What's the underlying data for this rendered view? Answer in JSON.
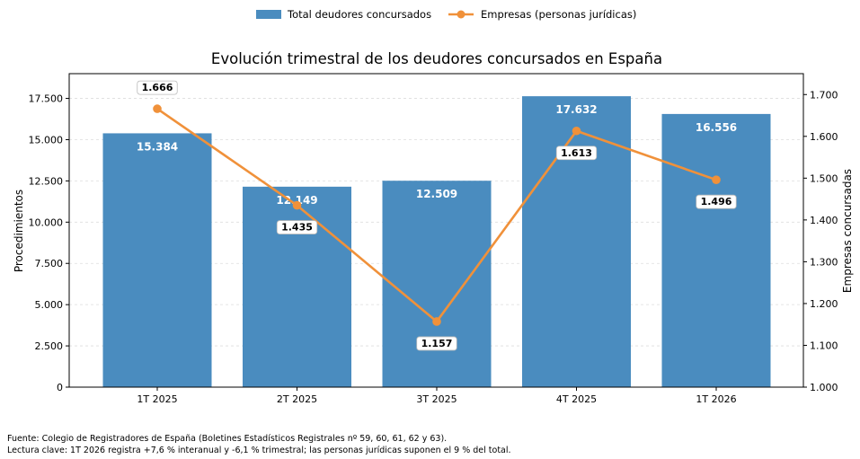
{
  "chart_data": {
    "type": "bar+line",
    "title": "Evolución trimestral de los deudores concursados en España",
    "categories": [
      "1T 2025",
      "2T 2025",
      "3T 2025",
      "4T 2025",
      "1T 2026"
    ],
    "series": [
      {
        "name": "Total deudores concursados",
        "type": "bar",
        "axis": "left",
        "values": [
          15384,
          12149,
          12509,
          17632,
          16556
        ],
        "labels": [
          "15.384",
          "12.149",
          "12.509",
          "17.632",
          "16.556"
        ],
        "color": "#4a8cbf"
      },
      {
        "name": "Empresas (personas jurídicas)",
        "type": "line",
        "axis": "right",
        "values": [
          1666,
          1435,
          1157,
          1613,
          1496
        ],
        "labels": [
          "1.666",
          "1.435",
          "1.157",
          "1.613",
          "1.496"
        ],
        "color": "#f0913a"
      }
    ],
    "ylabel_left": "Procedimientos",
    "ylabel_right": "Empresas concursadas",
    "ylim_left": [
      0,
      19000
    ],
    "ylim_right": [
      1000,
      1750
    ],
    "yticks_left": [
      {
        "value": 0,
        "label": "0"
      },
      {
        "value": 2500,
        "label": "2.500"
      },
      {
        "value": 5000,
        "label": "5.000"
      },
      {
        "value": 7500,
        "label": "7.500"
      },
      {
        "value": 10000,
        "label": "10.000"
      },
      {
        "value": 12500,
        "label": "12.500"
      },
      {
        "value": 15000,
        "label": "15.000"
      },
      {
        "value": 17500,
        "label": "17.500"
      }
    ],
    "yticks_right": [
      {
        "value": 1000,
        "label": "1.000"
      },
      {
        "value": 1100,
        "label": "1.100"
      },
      {
        "value": 1200,
        "label": "1.200"
      },
      {
        "value": 1300,
        "label": "1.300"
      },
      {
        "value": 1400,
        "label": "1.400"
      },
      {
        "value": 1500,
        "label": "1.500"
      },
      {
        "value": 1600,
        "label": "1.600"
      },
      {
        "value": 1700,
        "label": "1.700"
      }
    ],
    "grid": "horizontal-dashed",
    "legend_placement": "top-center"
  },
  "footer": {
    "source": "Fuente: Colegio de Registradores de España (Boletines Estadísticos Registrales nº 59, 60, 61, 62 y 63).",
    "note": "Lectura clave: 1T 2026 registra +7,6 % interanual y -6,1 % trimestral; las personas jurídicas suponen el 9 % del total."
  }
}
